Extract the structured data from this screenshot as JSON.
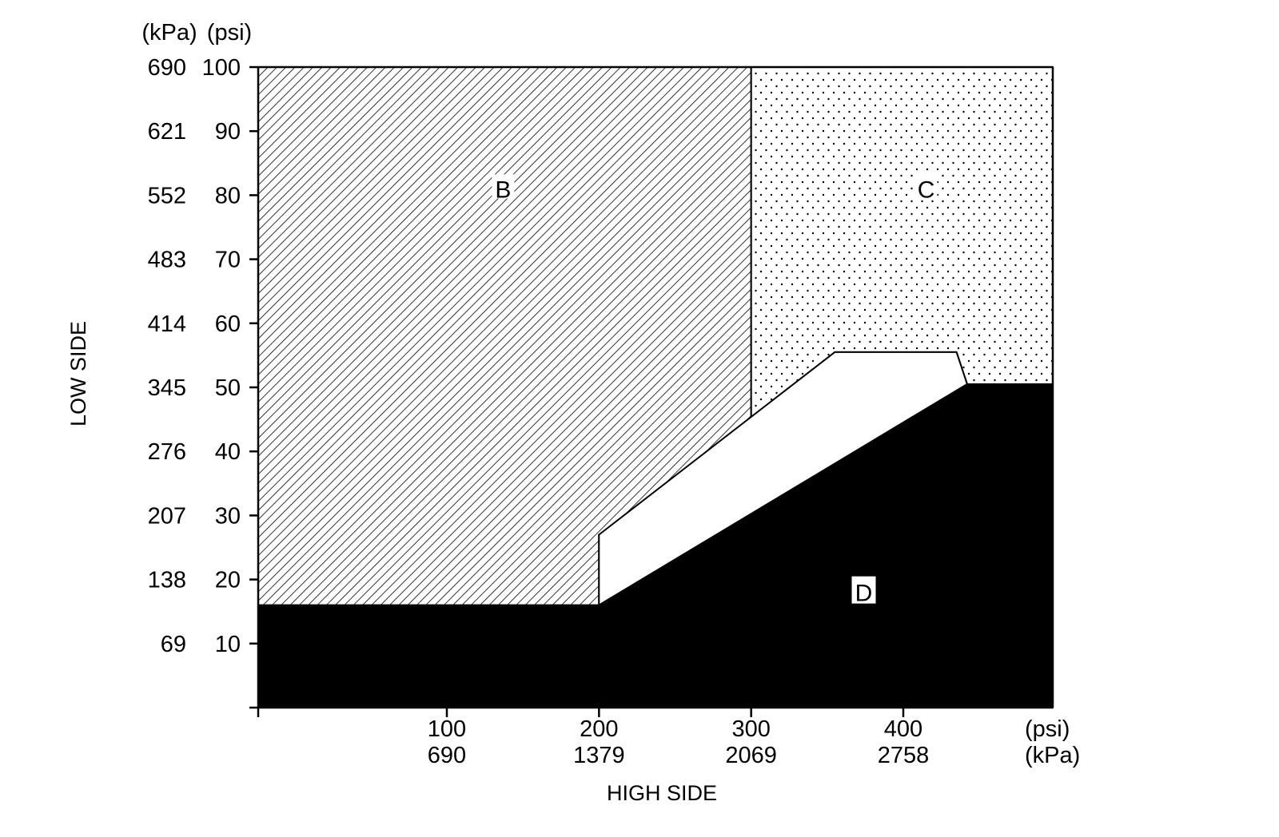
{
  "chart_data": {
    "type": "area",
    "title": "",
    "xlabel": "HIGH SIDE",
    "ylabel": "LOW SIDE",
    "x_units": [
      "(psi)",
      "(kPa)"
    ],
    "y_units": [
      "(kPa)",
      "(psi)"
    ],
    "xlim": [
      0,
      400
    ],
    "ylim": [
      0,
      100
    ],
    "x_ticks": [
      {
        "psi": 100,
        "kpa": "690"
      },
      {
        "psi": 200,
        "kpa": "1379"
      },
      {
        "psi": 300,
        "kpa": "2069"
      },
      {
        "psi": 400,
        "kpa": "2758"
      }
    ],
    "y_ticks": [
      {
        "psi": 10,
        "kpa": "69"
      },
      {
        "psi": 20,
        "kpa": "138"
      },
      {
        "psi": 30,
        "kpa": "207"
      },
      {
        "psi": 40,
        "kpa": "276"
      },
      {
        "psi": 50,
        "kpa": "345"
      },
      {
        "psi": 60,
        "kpa": "414"
      },
      {
        "psi": 70,
        "kpa": "483"
      },
      {
        "psi": 80,
        "kpa": "552"
      },
      {
        "psi": 90,
        "kpa": "621"
      },
      {
        "psi": 100,
        "kpa": "690"
      }
    ],
    "regions": [
      {
        "label": "B",
        "fill": "hatch",
        "label_at": [
          137,
          81
        ],
        "polygon": [
          [
            -125,
            16
          ],
          [
            200,
            16
          ],
          [
            200,
            27
          ],
          [
            300,
            41.5
          ],
          [
            300,
            100
          ],
          [
            -125,
            100
          ]
        ]
      },
      {
        "label": "C",
        "fill": "dots",
        "label_at": [
          415,
          81
        ],
        "polygon": [
          [
            300,
            41.5
          ],
          [
            355,
            55.5
          ],
          [
            435,
            55.5
          ],
          [
            442,
            50.5
          ],
          [
            530,
            50.5
          ],
          [
            530,
            100
          ],
          [
            300,
            100
          ]
        ]
      },
      {
        "label": "",
        "fill": "white",
        "polygon": [
          [
            200,
            16
          ],
          [
            200,
            27
          ],
          [
            355,
            55.5
          ],
          [
            435,
            55.5
          ],
          [
            442,
            50.5
          ]
        ]
      },
      {
        "label": "D",
        "fill": "solid",
        "label_at": [
          374,
          18
        ],
        "polygon": [
          [
            -125,
            0
          ],
          [
            530,
            0
          ],
          [
            530,
            50.5
          ],
          [
            442,
            50.5
          ],
          [
            200,
            16
          ],
          [
            -125,
            16
          ]
        ]
      }
    ],
    "colors": {
      "ink": "#000000",
      "paper": "#ffffff"
    },
    "grid": false
  }
}
